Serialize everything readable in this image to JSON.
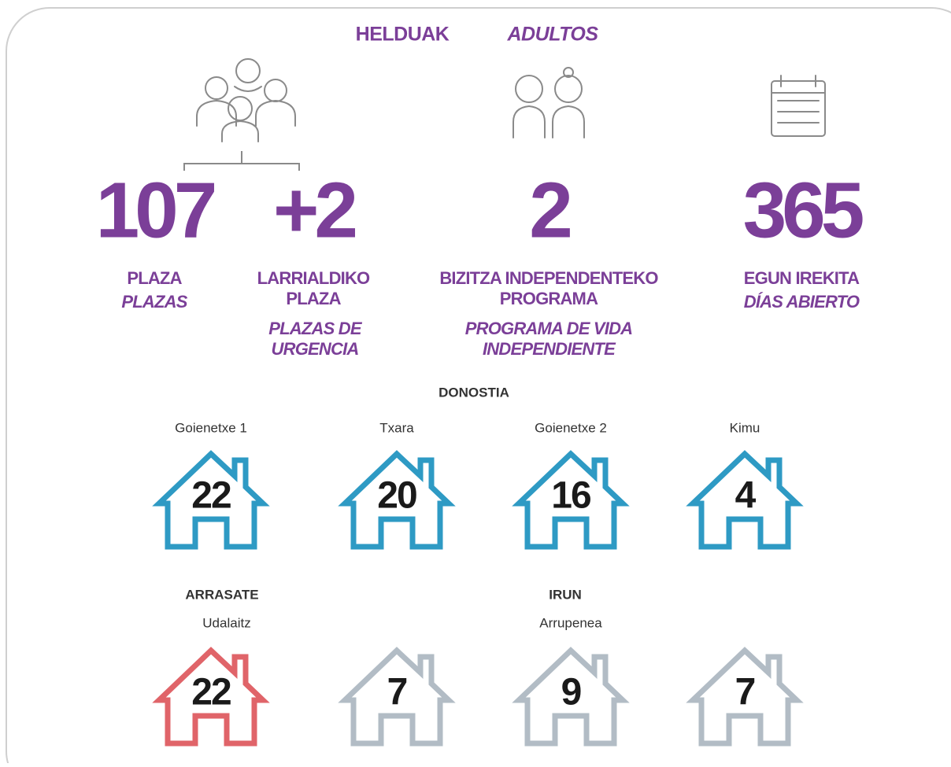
{
  "header": {
    "title_eu": "HELDUAK",
    "title_es": "ADULTOS"
  },
  "stats": [
    {
      "value": 107,
      "label_eu": [
        "PLAZA"
      ],
      "label_es": [
        "PLAZAS"
      ]
    },
    {
      "value": "+2",
      "label_eu": [
        "LARRIALDIKO",
        "PLAZA"
      ],
      "label_es": [
        "PLAZAS DE",
        "URGENCIA"
      ]
    },
    {
      "value": 2,
      "label_eu": [
        "BIZITZA INDEPENDENTEKO",
        "PROGRAMA"
      ],
      "label_es": [
        "PROGRAMA DE VIDA",
        "INDEPENDIENTE"
      ]
    },
    {
      "value": 365,
      "label_eu": [
        "EGUN IREKITA"
      ],
      "label_es": [
        "DÍAS ABIERTO"
      ]
    }
  ],
  "regions": [
    {
      "name": "DONOSTIA"
    },
    {
      "name": "ARRASATE"
    },
    {
      "name": "IRUN"
    }
  ],
  "houses": [
    {
      "name": "Goienetxe 1",
      "value": 22,
      "color": "#2e9ac4"
    },
    {
      "name": "Txara",
      "value": 20,
      "color": "#2e9ac4"
    },
    {
      "name": "Goienetxe 2",
      "value": 16,
      "color": "#2e9ac4"
    },
    {
      "name": "Kimu",
      "value": 4,
      "color": "#2e9ac4"
    },
    {
      "name": "Udalaitz",
      "value": 22,
      "color": "#e06469"
    },
    {
      "value": 7,
      "color": "#b2bcc5"
    },
    {
      "name": "Arrupenea",
      "value": 9,
      "color": "#b2bcc5"
    },
    {
      "value": 7,
      "color": "#b2bcc5"
    }
  ]
}
